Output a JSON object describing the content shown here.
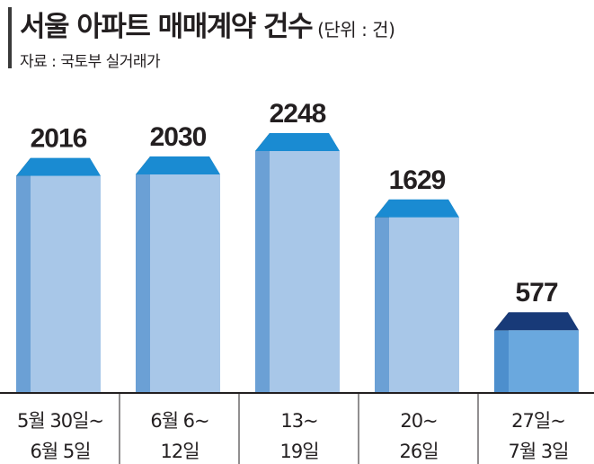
{
  "header": {
    "title": "서울 아파트 매매계약 건수",
    "unit": "(단위 : 건)",
    "source": "자료 : 국토부 실거래가"
  },
  "chart_data": {
    "type": "bar",
    "title": "서울 아파트 매매계약 건수",
    "unit": "(단위 : 건)",
    "categories": [
      [
        "5월 30일~",
        "6월 5일"
      ],
      [
        "6월 6~",
        "12일"
      ],
      [
        "13~",
        "19일"
      ],
      [
        "20~",
        "26일"
      ],
      [
        "27일~",
        "7월 3일"
      ]
    ],
    "values": [
      2016,
      2030,
      2248,
      1629,
      577
    ],
    "value_labels": [
      "2016",
      "2030",
      "2248",
      "1629",
      "577"
    ],
    "ylim": [
      0,
      2400
    ],
    "grid": false,
    "legend": "none",
    "colors": {
      "front": "#a8c7e8",
      "side": "#6ba0d5",
      "top": "#1a8bd2",
      "top_dark": "#3c3c3c",
      "last_front": "#6aa8de",
      "last_side": "#4d8fcd",
      "last_top": "#183a78",
      "baseline": "#231f20"
    }
  }
}
